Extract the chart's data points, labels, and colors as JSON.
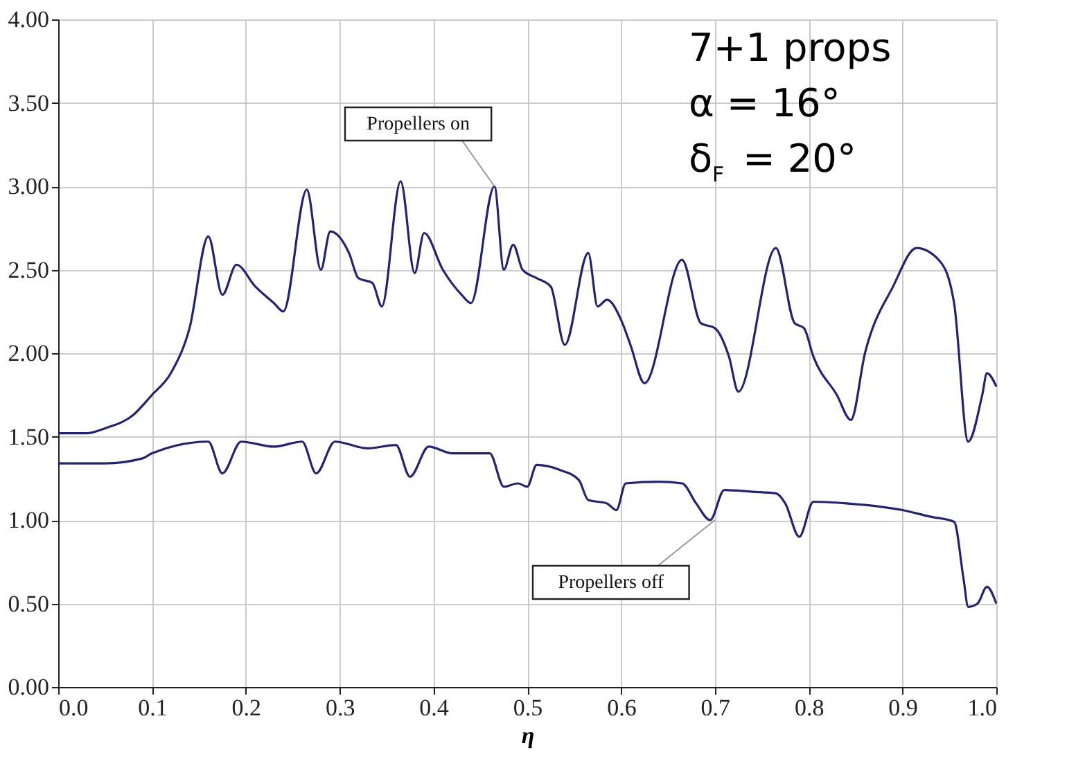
{
  "chart_data": {
    "type": "line",
    "xlabel": "η",
    "x": [
      0,
      0.03,
      0.05,
      0.08,
      0.1,
      0.12,
      0.14,
      0.16,
      0.175,
      0.19,
      0.21,
      0.23,
      0.24,
      0.265,
      0.28,
      0.29,
      0.31,
      0.32,
      0.335,
      0.345,
      0.365,
      0.38,
      0.39,
      0.41,
      0.43,
      0.44,
      0.465,
      0.475,
      0.485,
      0.495,
      0.51,
      0.525,
      0.54,
      0.565,
      0.575,
      0.585,
      0.6,
      0.61,
      0.625,
      0.665,
      0.685,
      0.7,
      0.715,
      0.725,
      0.765,
      0.785,
      0.795,
      0.805,
      0.83,
      0.845,
      0.86,
      0.89,
      0.915,
      0.94,
      0.955,
      0.97,
      0.985,
      0.99,
      1.0
    ],
    "series": [
      {
        "color": "#23236e",
        "values": [
          1.52,
          1.52,
          1.55,
          1.63,
          1.75,
          1.88,
          2.15,
          2.7,
          2.35,
          2.53,
          2.4,
          2.3,
          2.25,
          2.98,
          2.5,
          2.73,
          2.6,
          2.45,
          2.42,
          2.28,
          3.03,
          2.48,
          2.72,
          2.5,
          2.35,
          2.3,
          3.0,
          2.5,
          2.65,
          2.5,
          2.45,
          2.4,
          2.05,
          2.6,
          2.28,
          2.32,
          2.2,
          2.05,
          1.82,
          2.56,
          2.18,
          2.15,
          1.98,
          1.77,
          2.63,
          2.18,
          2.15,
          1.98,
          1.75,
          1.6,
          2.0,
          2.4,
          2.63,
          2.55,
          2.3,
          1.47,
          1.75,
          1.88,
          1.8
        ]
      },
      {
        "color": "#23236e",
        "x": [
          0,
          0.05,
          0.09,
          0.1,
          0.16,
          0.175,
          0.195,
          0.23,
          0.26,
          0.275,
          0.295,
          0.33,
          0.36,
          0.375,
          0.395,
          0.42,
          0.46,
          0.475,
          0.49,
          0.5,
          0.51,
          0.535,
          0.555,
          0.565,
          0.585,
          0.595,
          0.605,
          0.64,
          0.665,
          0.68,
          0.695,
          0.71,
          0.74,
          0.765,
          0.775,
          0.79,
          0.805,
          0.84,
          0.9,
          0.93,
          0.955,
          0.965,
          0.97,
          0.98,
          0.99,
          1.0
        ],
        "values": [
          1.34,
          1.34,
          1.37,
          1.4,
          1.47,
          1.28,
          1.47,
          1.44,
          1.47,
          1.28,
          1.47,
          1.43,
          1.45,
          1.26,
          1.44,
          1.4,
          1.4,
          1.2,
          1.22,
          1.2,
          1.33,
          1.3,
          1.24,
          1.12,
          1.1,
          1.06,
          1.22,
          1.23,
          1.22,
          1.1,
          1.0,
          1.18,
          1.17,
          1.16,
          1.1,
          0.9,
          1.11,
          1.1,
          1.06,
          1.02,
          0.99,
          0.65,
          0.48,
          0.5,
          0.6,
          0.5
        ]
      }
    ],
    "annotations": [
      {
        "text": "Propellers on",
        "x": 0.465,
        "y": 3.0
      },
      {
        "text": "Propellers off",
        "x": 0.7,
        "y": 1.0
      },
      "7+1 props",
      "α = 16°",
      "δ$_{F}$ = 20°"
    ],
    "xlim": [
      0,
      1.0
    ],
    "ylim": [
      0,
      4.0
    ],
    "xticks": [
      {
        "value": 0,
        "label": "0.0"
      },
      0.1,
      0.2,
      0.3,
      0.4,
      0.5,
      0.6,
      0.7,
      0.8,
      0.9,
      {
        "value": 1,
        "label": "1.0"
      }
    ],
    "yticks": [
      {
        "value": 0,
        "label": "0.00"
      },
      {
        "value": 0.5,
        "label": "0.50"
      },
      {
        "value": 1,
        "label": "1.00"
      },
      {
        "value": 1.5,
        "label": "1.50"
      },
      {
        "value": 2,
        "label": "2.00"
      },
      {
        "value": 2.5,
        "label": "2.50"
      },
      {
        "value": 3,
        "label": "3.00"
      },
      {
        "value": 3.5,
        "label": "3.50"
      },
      {
        "value": 4,
        "label": "4.00"
      }
    ],
    "grid": true,
    "line_style": "solid",
    "marker": "none"
  }
}
